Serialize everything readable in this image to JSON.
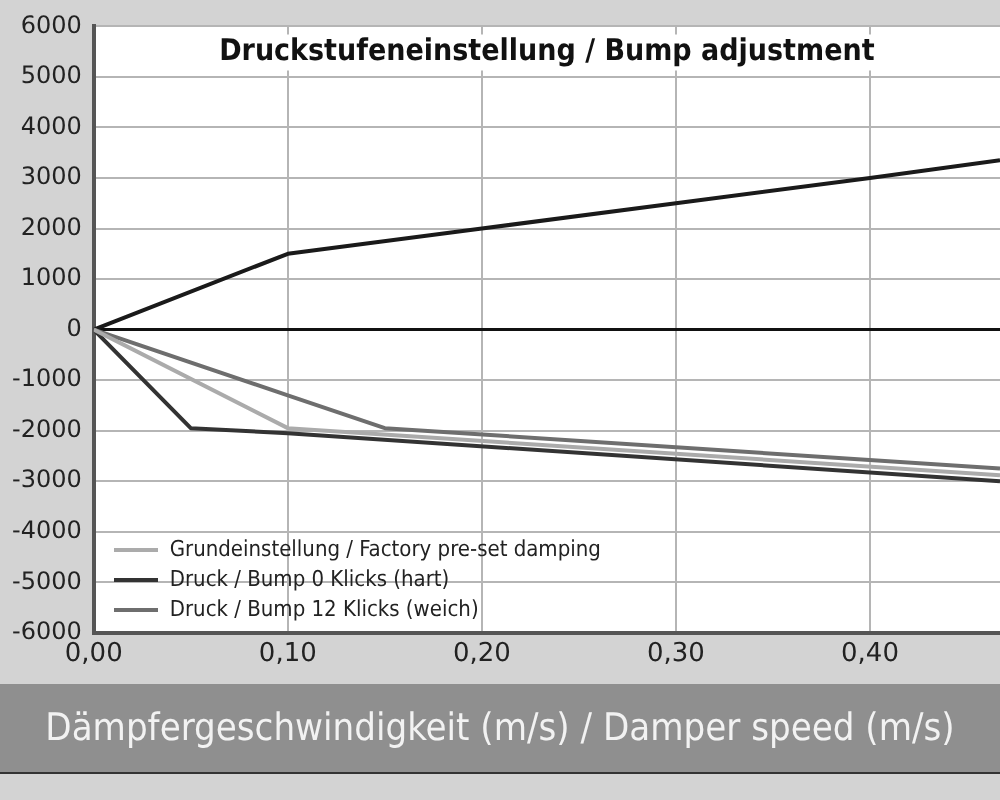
{
  "chart_data": {
    "type": "line",
    "title": "Druckstufeneinstellung / Bump adjustment",
    "xlabel": "Dämpfergeschwindigkeit (m/s) / Damper speed (m/s)",
    "xlim": [
      0,
      0.467
    ],
    "xticks": [
      {
        "value": 0,
        "label": "0,00"
      },
      {
        "value": 0.1,
        "label": "0,10"
      },
      {
        "value": 0.2,
        "label": "0,20"
      },
      {
        "value": 0.3,
        "label": "0,30"
      },
      {
        "value": 0.4,
        "label": "0,40"
      }
    ],
    "ylim": [
      -6000,
      6000
    ],
    "yticks": [
      -6000,
      -5000,
      -4000,
      -3000,
      -2000,
      -1000,
      0,
      1000,
      2000,
      3000,
      4000,
      5000,
      6000
    ],
    "grid": true,
    "legend": "bottom left",
    "marker": "none",
    "line_style": "solid",
    "series": [
      {
        "name": "Grundeinstellung / Factory pre-set damping",
        "color": "#ababab",
        "x": [
          0,
          0.1,
          0.467
        ],
        "values": [
          0,
          -1950,
          -2880
        ]
      },
      {
        "name": "Druck / Bump 0 Klicks (hart)",
        "color": "#333333",
        "x": [
          0,
          0.05,
          0.1,
          0.467
        ],
        "values": [
          0,
          -1950,
          -2050,
          -3000
        ]
      },
      {
        "name": "Druck / Bump 12 Klicks (weich)",
        "color": "#6e6e6e",
        "x": [
          0,
          0.1,
          0.15,
          0.467
        ],
        "values": [
          0,
          -1300,
          -1950,
          -2750
        ]
      },
      {
        "color": "#1a1a1a",
        "x": [
          0,
          0.1,
          0.2,
          0.3,
          0.4,
          0.467
        ],
        "values": [
          0,
          1500,
          2000,
          2500,
          3000,
          3350
        ]
      }
    ]
  }
}
